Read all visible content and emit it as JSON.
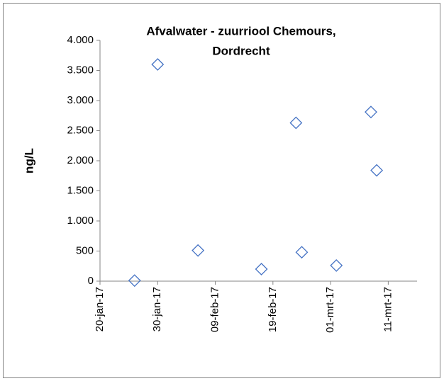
{
  "chart_data": {
    "type": "scatter",
    "title": [
      "Afvalwater - zuurriool Chemours,",
      "Dordrecht"
    ],
    "ylabel": "ng/L",
    "series": [
      {
        "name": "Afvalwater",
        "color": "#4472c4",
        "x": [
          "2017-01-26",
          "2017-01-30",
          "2017-02-06",
          "2017-02-17",
          "2017-02-23",
          "2017-02-24",
          "2017-03-02",
          "2017-03-08",
          "2017-03-09"
        ],
        "values": [
          10,
          3600,
          510,
          200,
          2630,
          480,
          260,
          2810,
          1840
        ]
      }
    ],
    "xlim": [
      "2017-01-20",
      "2017-03-16"
    ],
    "xticks": [
      {
        "value": "2017-01-20",
        "label": "20-jan-17"
      },
      {
        "value": "2017-01-30",
        "label": "30-jan-17"
      },
      {
        "value": "2017-02-09",
        "label": "09-feb-17"
      },
      {
        "value": "2017-02-19",
        "label": "19-feb-17"
      },
      {
        "value": "2017-03-01",
        "label": "01-mrt-17"
      },
      {
        "value": "2017-03-11",
        "label": "11-mrt-17"
      }
    ],
    "ylim": [
      0,
      4000
    ],
    "yticks": [
      0,
      500,
      {
        "value": 1000,
        "label": "1.000"
      },
      {
        "value": 1500,
        "label": "1.500"
      },
      {
        "value": 2000,
        "label": "2.000"
      },
      {
        "value": 2500,
        "label": "2.500"
      },
      {
        "value": 3000,
        "label": "3.000"
      },
      {
        "value": 3500,
        "label": "3.500"
      },
      {
        "value": 4000,
        "label": "4.000"
      }
    ]
  }
}
